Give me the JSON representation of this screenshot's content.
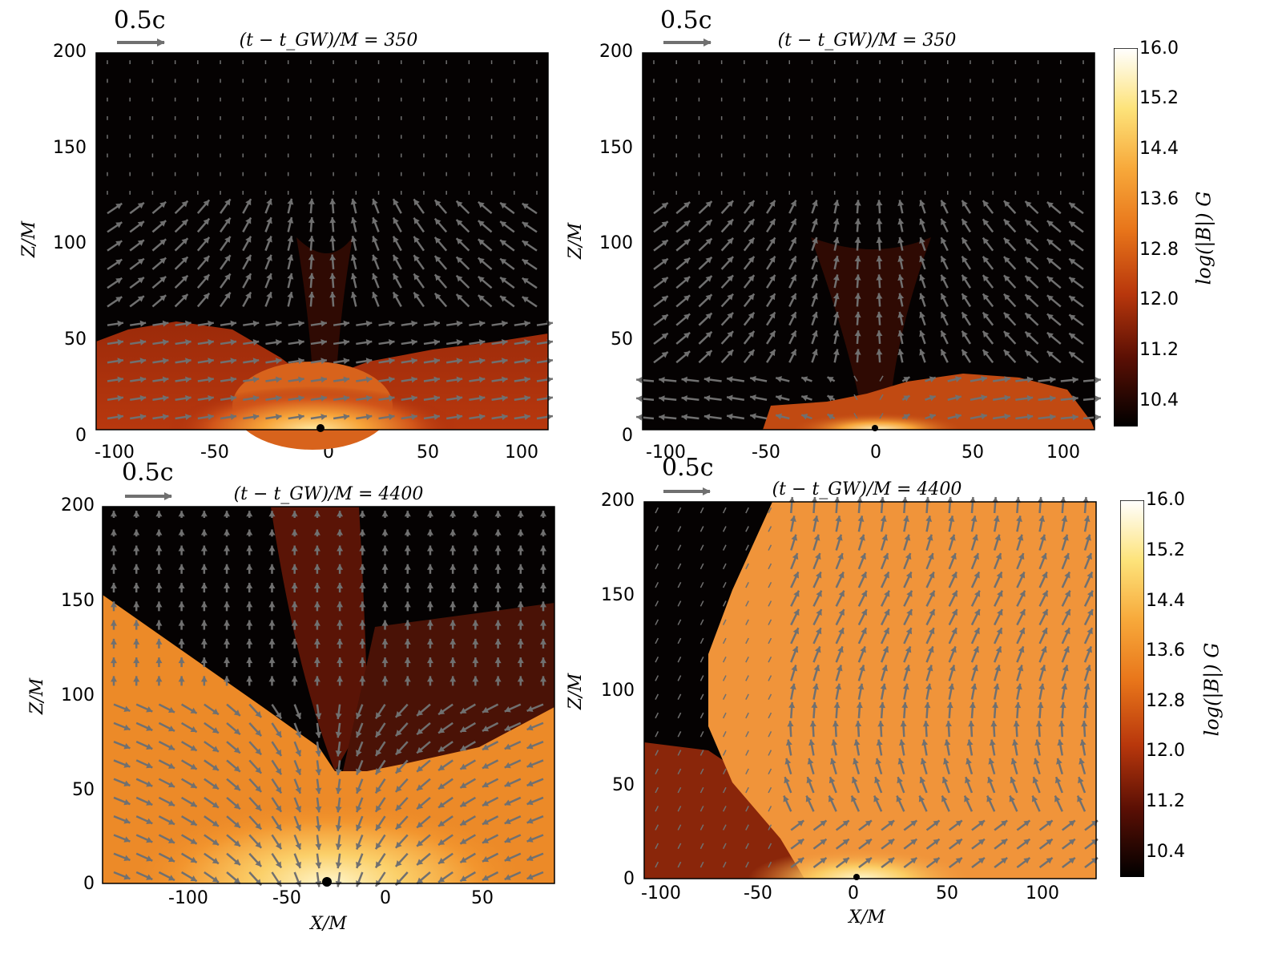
{
  "chart_data": [
    {
      "type": "heatmap",
      "title": "(t − t_GW)/M = 350",
      "scale_arrow_label": "0.5c",
      "ylabel": "Z/M",
      "xlabel": "",
      "xlim": [
        -120,
        120
      ],
      "ylim": [
        0,
        200
      ],
      "xticks": [
        -100,
        -50,
        0,
        50,
        100
      ],
      "yticks": [
        0,
        50,
        100,
        150,
        200
      ],
      "field": "log(|B|)"
    },
    {
      "type": "heatmap",
      "title": "(t − t_GW)/M = 350",
      "scale_arrow_label": "0.5c",
      "ylabel": "Z/M",
      "xlabel": "",
      "xlim": [
        -125,
        115
      ],
      "ylim": [
        0,
        200
      ],
      "xticks": [
        -100,
        -50,
        0,
        50,
        100
      ],
      "yticks": [
        0,
        50,
        100,
        150,
        200
      ],
      "field": "log(|B|)"
    },
    {
      "type": "heatmap",
      "title": "(t − t_GW)/M = 4400",
      "scale_arrow_label": "0.5c",
      "ylabel": "Z/M",
      "xlabel": "X/M",
      "xlim": [
        -150,
        90
      ],
      "ylim": [
        0,
        200
      ],
      "xticks": [
        -100,
        -50,
        0,
        50
      ],
      "yticks": [
        0,
        50,
        100,
        150,
        200
      ],
      "field": "log(|B|)"
    },
    {
      "type": "heatmap",
      "title": "(t − t_GW)/M = 4400",
      "scale_arrow_label": "0.5c",
      "ylabel": "Z/M",
      "xlabel": "X/M",
      "xlim": [
        -112,
        128
      ],
      "ylim": [
        0,
        200
      ],
      "xticks": [
        -100,
        -50,
        0,
        50,
        100
      ],
      "yticks": [
        0,
        50,
        100,
        150,
        200
      ],
      "field": "log(|B|)"
    }
  ],
  "colorbars": [
    {
      "label": "log(|B|) G",
      "ticks": [
        "16.0",
        "15.2",
        "14.4",
        "13.6",
        "12.8",
        "12.0",
        "11.2",
        "10.4"
      ],
      "range": [
        10.0,
        16.0
      ]
    },
    {
      "label": "log(|B|) G",
      "ticks": [
        "16.0",
        "15.2",
        "14.4",
        "13.6",
        "12.8",
        "12.0",
        "11.2",
        "10.4"
      ],
      "range": [
        10.0,
        16.0
      ]
    }
  ],
  "colors": {
    "arrow": "#707070",
    "background_low": "#000000",
    "mid": "#e8751a",
    "high": "#ffffff"
  }
}
